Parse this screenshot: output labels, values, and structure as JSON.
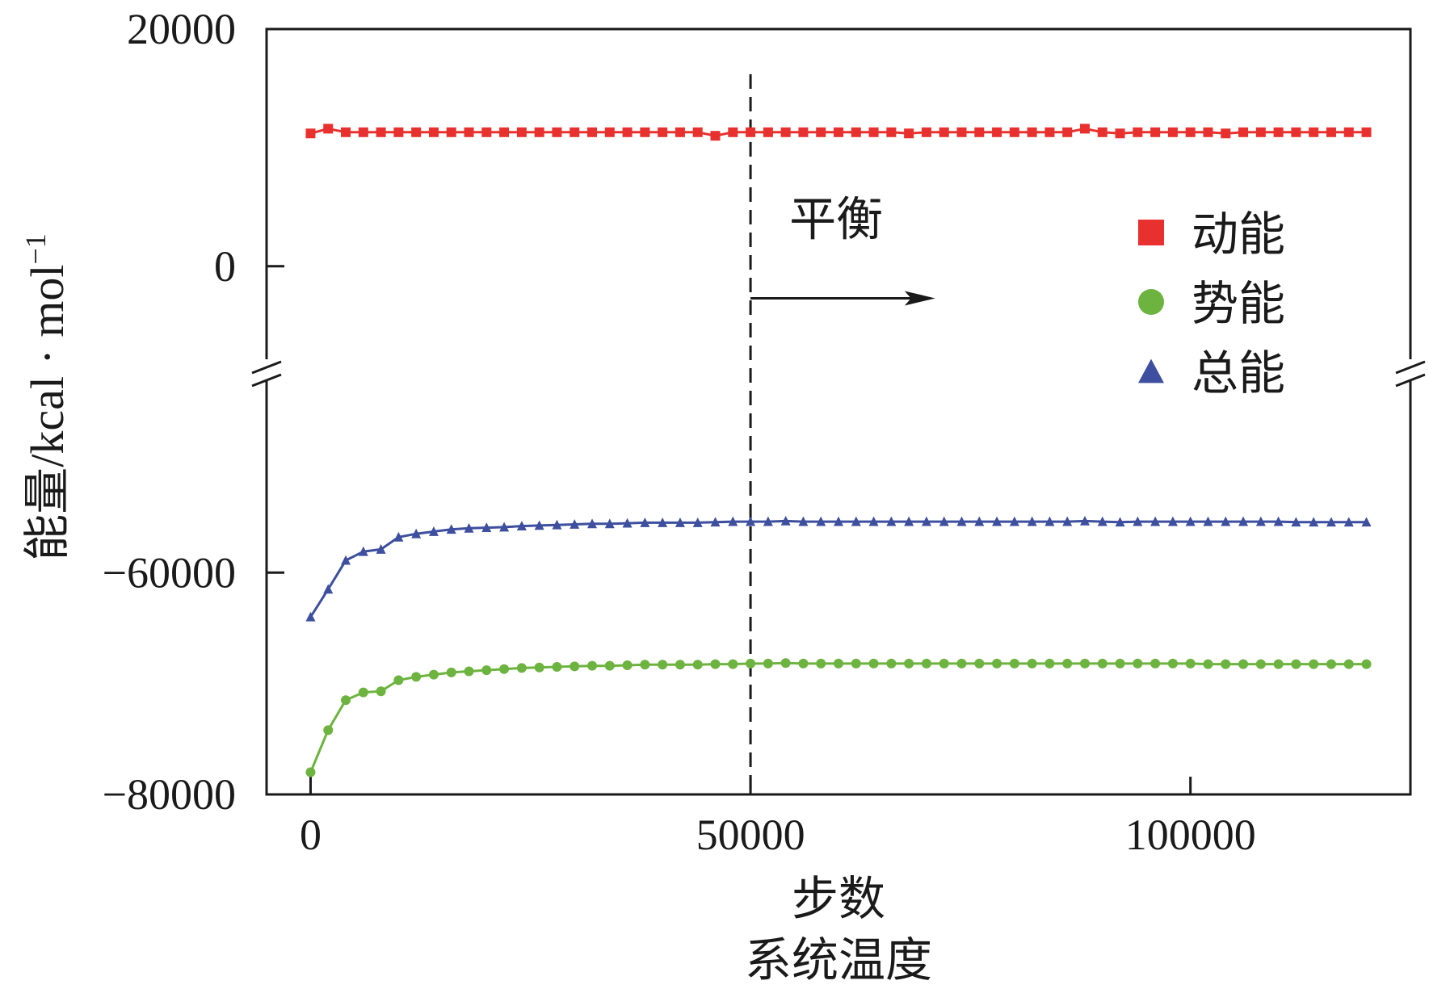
{
  "chart_data": {
    "type": "line",
    "xlabel": [
      "步数",
      "系统温度"
    ],
    "ylabel": "能量/kcal · mol",
    "ylabel_sup": "−1",
    "x_ticks": [
      "0",
      "50000",
      "100000"
    ],
    "x_tick_values": [
      0,
      50000,
      100000
    ],
    "xlim": [
      -5000,
      125000
    ],
    "y_ticks_upper": [
      "20000",
      "0"
    ],
    "y_tick_values_upper": [
      20000,
      0
    ],
    "ylim_upper": [
      -9000,
      20000
    ],
    "y_ticks_lower": [
      "−60000",
      "−80000"
    ],
    "y_tick_values_lower": [
      -60000,
      -80000
    ],
    "ylim_lower": [
      -80000,
      -42000
    ],
    "axis_break": true,
    "legend_position": "right",
    "annotation": {
      "text": "平衡",
      "vline_x": 50000,
      "arrow_from_x": 50000,
      "arrow_to_x": 71000,
      "arrow_y": -2700
    },
    "series": [
      {
        "name": "动能",
        "marker": "square",
        "color": "#e8312e",
        "panel": "upper",
        "x": [
          0,
          2000,
          4000,
          6000,
          8000,
          10000,
          12000,
          14000,
          16000,
          18000,
          20000,
          22000,
          24000,
          26000,
          28000,
          30000,
          32000,
          34000,
          36000,
          38000,
          40000,
          42000,
          44000,
          46000,
          48000,
          50000,
          52000,
          54000,
          56000,
          58000,
          60000,
          62000,
          64000,
          66000,
          68000,
          70000,
          72000,
          74000,
          76000,
          78000,
          80000,
          82000,
          84000,
          86000,
          88000,
          90000,
          92000,
          94000,
          96000,
          98000,
          100000,
          102000,
          104000,
          106000,
          108000,
          110000,
          112000,
          114000,
          116000,
          118000,
          120000
        ],
        "values": [
          11200,
          11600,
          11300,
          11300,
          11300,
          11300,
          11300,
          11300,
          11300,
          11300,
          11300,
          11300,
          11300,
          11300,
          11300,
          11300,
          11300,
          11300,
          11300,
          11300,
          11300,
          11300,
          11300,
          11000,
          11300,
          11300,
          11300,
          11300,
          11300,
          11300,
          11300,
          11300,
          11300,
          11300,
          11200,
          11300,
          11300,
          11300,
          11300,
          11300,
          11300,
          11300,
          11300,
          11300,
          11600,
          11300,
          11200,
          11300,
          11300,
          11300,
          11300,
          11300,
          11200,
          11300,
          11300,
          11300,
          11300,
          11300,
          11300,
          11300,
          11300
        ]
      },
      {
        "name": "势能",
        "marker": "circle",
        "color": "#6db33f",
        "panel": "lower",
        "x": [
          0,
          2000,
          4000,
          6000,
          8000,
          10000,
          12000,
          14000,
          16000,
          18000,
          20000,
          22000,
          24000,
          26000,
          28000,
          30000,
          32000,
          34000,
          36000,
          38000,
          40000,
          42000,
          44000,
          46000,
          48000,
          50000,
          52000,
          54000,
          56000,
          58000,
          60000,
          62000,
          64000,
          66000,
          68000,
          70000,
          72000,
          74000,
          76000,
          78000,
          80000,
          82000,
          84000,
          86000,
          88000,
          90000,
          92000,
          94000,
          96000,
          98000,
          100000,
          102000,
          104000,
          106000,
          108000,
          110000,
          112000,
          114000,
          116000,
          118000,
          120000
        ],
        "values": [
          -78000,
          -74200,
          -71500,
          -70800,
          -70700,
          -69700,
          -69400,
          -69200,
          -69000,
          -68900,
          -68800,
          -68700,
          -68600,
          -68550,
          -68500,
          -68450,
          -68400,
          -68400,
          -68350,
          -68300,
          -68300,
          -68300,
          -68300,
          -68250,
          -68250,
          -68200,
          -68200,
          -68150,
          -68200,
          -68200,
          -68200,
          -68200,
          -68200,
          -68200,
          -68200,
          -68200,
          -68200,
          -68200,
          -68200,
          -68200,
          -68200,
          -68200,
          -68200,
          -68200,
          -68200,
          -68200,
          -68200,
          -68200,
          -68200,
          -68200,
          -68200,
          -68250,
          -68250,
          -68250,
          -68250,
          -68250,
          -68250,
          -68250,
          -68250,
          -68250,
          -68250
        ]
      },
      {
        "name": "总能",
        "marker": "triangle",
        "color": "#3d4f9e",
        "panel": "lower",
        "x": [
          0,
          2000,
          4000,
          6000,
          8000,
          10000,
          12000,
          14000,
          16000,
          18000,
          20000,
          22000,
          24000,
          26000,
          28000,
          30000,
          32000,
          34000,
          36000,
          38000,
          40000,
          42000,
          44000,
          46000,
          48000,
          50000,
          52000,
          54000,
          56000,
          58000,
          60000,
          62000,
          64000,
          66000,
          68000,
          70000,
          72000,
          74000,
          76000,
          78000,
          80000,
          82000,
          84000,
          86000,
          88000,
          90000,
          92000,
          94000,
          96000,
          98000,
          100000,
          102000,
          104000,
          106000,
          108000,
          110000,
          112000,
          114000,
          116000,
          118000,
          120000
        ],
        "values": [
          -64000,
          -61500,
          -58900,
          -58100,
          -57900,
          -56800,
          -56500,
          -56300,
          -56100,
          -56000,
          -55950,
          -55900,
          -55800,
          -55750,
          -55700,
          -55650,
          -55600,
          -55600,
          -55550,
          -55500,
          -55500,
          -55500,
          -55500,
          -55450,
          -55400,
          -55400,
          -55400,
          -55350,
          -55400,
          -55400,
          -55400,
          -55400,
          -55400,
          -55400,
          -55400,
          -55400,
          -55400,
          -55400,
          -55400,
          -55400,
          -55400,
          -55400,
          -55400,
          -55400,
          -55350,
          -55400,
          -55450,
          -55400,
          -55400,
          -55400,
          -55400,
          -55400,
          -55400,
          -55400,
          -55400,
          -55400,
          -55450,
          -55450,
          -55450,
          -55450,
          -55450
        ]
      }
    ]
  }
}
